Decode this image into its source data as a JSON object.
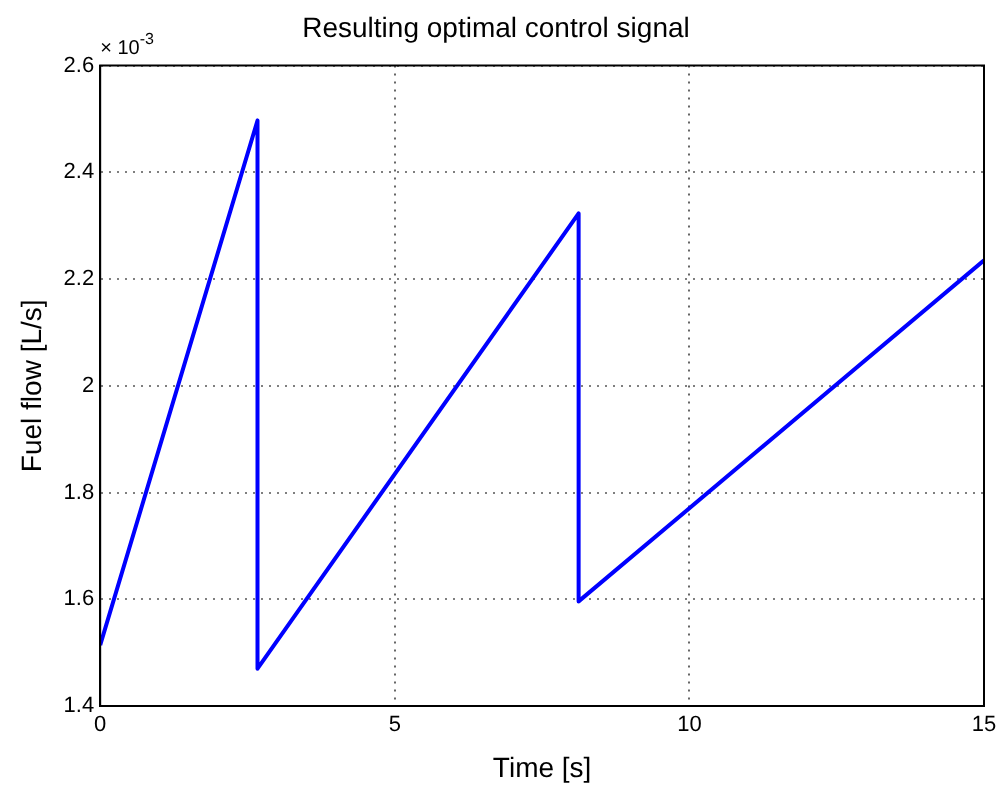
{
  "chart_data": {
    "type": "line",
    "title": "Resulting optimal control signal",
    "xlabel": "Time [s]",
    "ylabel": "Fuel flow [L/s]",
    "annotations": [
      "× 10$^{-3}$"
    ],
    "series": [
      {
        "color": "#0000ff",
        "x": [
          0,
          2.67,
          2.67,
          8.12,
          8.12,
          15
        ],
        "values": [
          1.514,
          2.497,
          1.47,
          2.323,
          1.596,
          2.235
        ]
      }
    ],
    "xlim": [
      0,
      15
    ],
    "xticks": [
      0,
      5,
      10,
      15
    ],
    "ylim": [
      1.4,
      2.6
    ],
    "yticks": [
      1.4,
      1.6,
      1.8,
      2,
      2.2,
      2.4,
      2.6
    ],
    "grid": true,
    "line_style": "solid",
    "marker": "none",
    "legend": false
  }
}
